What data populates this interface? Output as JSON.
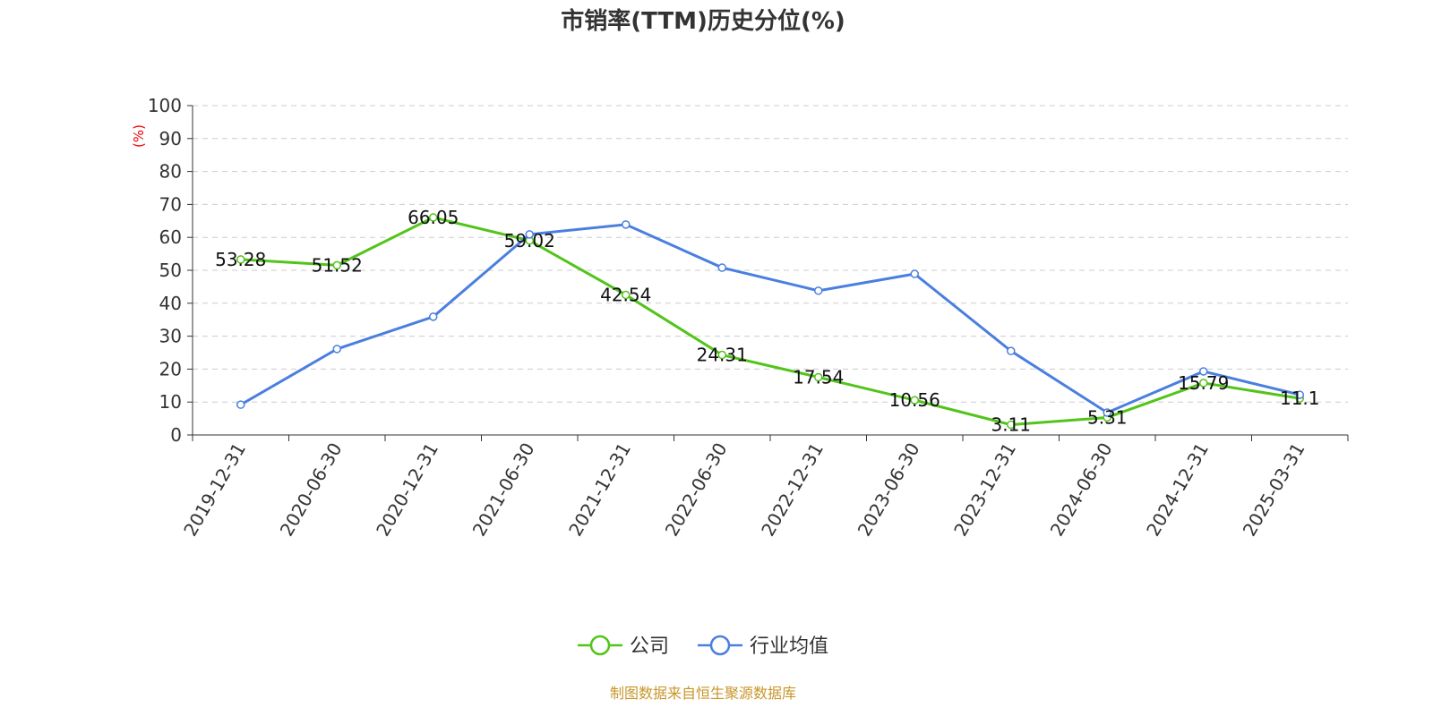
{
  "chart_data": {
    "type": "line",
    "title": "市销率(TTM)历史分位(%)",
    "ylabel": "(%)",
    "ylim": [
      0,
      100
    ],
    "yticks": [
      0,
      10,
      20,
      30,
      40,
      50,
      60,
      70,
      80,
      90,
      100
    ],
    "grid": true,
    "legend_placement": "bottom",
    "categories": [
      "2019-12-31",
      "2020-06-30",
      "2020-12-31",
      "2021-06-30",
      "2021-12-31",
      "2022-06-30",
      "2022-12-31",
      "2023-06-30",
      "2023-12-31",
      "2024-06-30",
      "2024-12-31",
      "2025-03-31"
    ],
    "series": [
      {
        "name": "公司",
        "color": "#52c41a",
        "values": [
          53.28,
          51.52,
          66.05,
          59.02,
          42.54,
          24.31,
          17.54,
          10.56,
          3.11,
          5.31,
          15.79,
          11.1
        ],
        "labels": true
      },
      {
        "name": "行业均值",
        "color": "#4a7fe0",
        "values": [
          9.2,
          26.1,
          35.9,
          60.9,
          63.9,
          50.8,
          43.8,
          48.9,
          25.5,
          6.8,
          19.3,
          12.2
        ],
        "labels": false
      }
    ],
    "source": "制图数据来自恒生聚源数据库"
  }
}
